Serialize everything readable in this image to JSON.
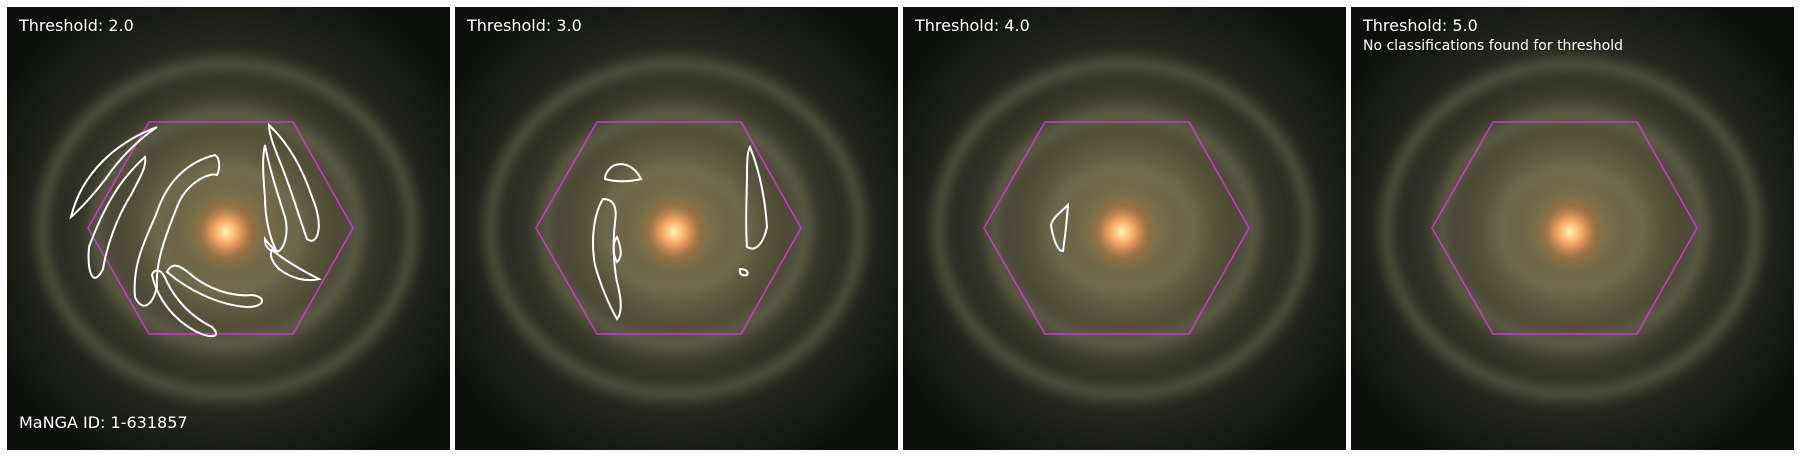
{
  "panels": [
    {
      "threshold_label": "Threshold: 2.0",
      "note": "",
      "footer": "MaNGA ID: 1-631857"
    },
    {
      "threshold_label": "Threshold: 3.0",
      "note": "",
      "footer": ""
    },
    {
      "threshold_label": "Threshold: 4.0",
      "note": "",
      "footer": ""
    },
    {
      "threshold_label": "Threshold: 5.0",
      "note": "No classifications found for threshold",
      "footer": ""
    }
  ],
  "colors": {
    "hexagon": "#c63bc6",
    "contour": "#ffffff",
    "label_text": "#ffffff"
  }
}
